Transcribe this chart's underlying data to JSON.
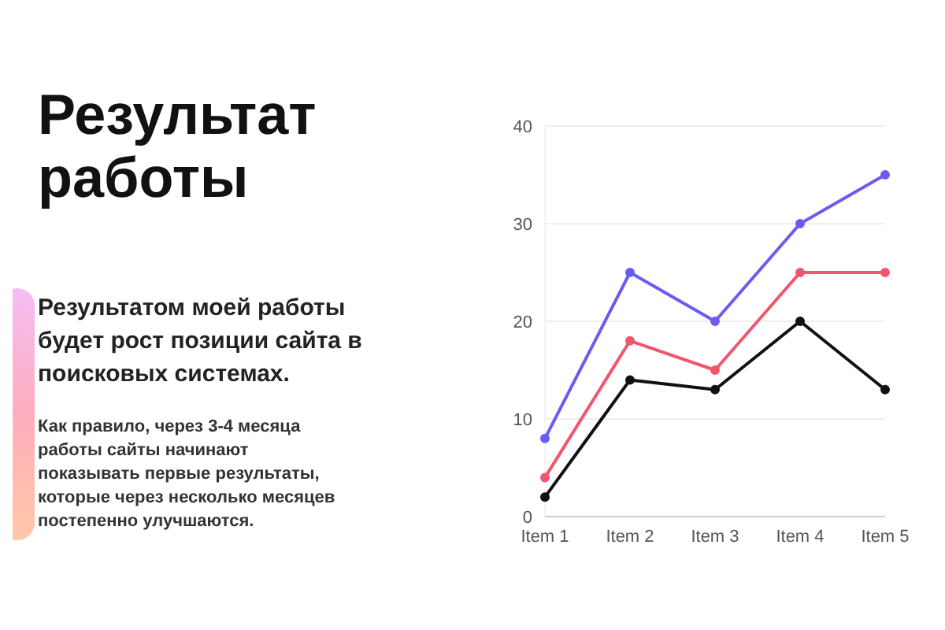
{
  "chart_data": {
    "type": "line",
    "title": "Результат работы",
    "subtitle": "Результатом моей работы будет рост позиции сайта в поисковых системах.",
    "annotations": [
      "Как правило, через 3-4 месяца работы сайты начинают показывать первые результаты, которые через несколько месяцев постепенно улучшаются."
    ],
    "categories": [
      "Item 1",
      "Item 2",
      "Item 3",
      "Item 4",
      "Item 5"
    ],
    "series": [
      {
        "color": "#6a5cf0",
        "values": [
          8,
          25,
          20,
          30,
          35
        ]
      },
      {
        "color": "#f0566e",
        "values": [
          4,
          18,
          15,
          25,
          25
        ]
      },
      {
        "color": "#111111",
        "values": [
          2,
          14,
          13,
          20,
          13
        ]
      }
    ],
    "ylim": [
      0,
      40
    ],
    "yticks": [
      0,
      10,
      20,
      30,
      40
    ],
    "grid": "y",
    "marker": "circle",
    "line_style": "solid"
  }
}
